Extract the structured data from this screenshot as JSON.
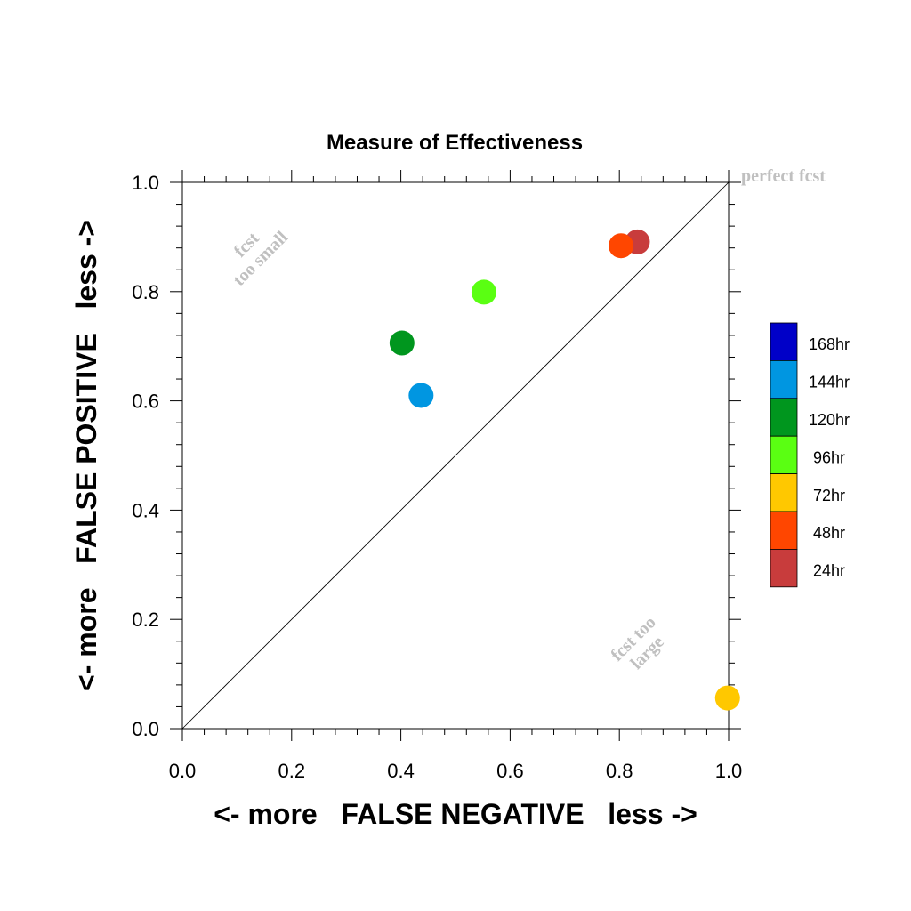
{
  "chart_data": {
    "type": "scatter",
    "title": "Measure of Effectiveness",
    "xlabel": "<- more   FALSE NEGATIVE   less ->",
    "ylabel": "<- more   FALSE POSITIVE   less ->",
    "xlim": [
      0,
      1
    ],
    "ylim": [
      0,
      1
    ],
    "x_ticks": [
      "0.0",
      "0.2",
      "0.4",
      "0.6",
      "0.8",
      "1.0"
    ],
    "y_ticks": [
      "0.0",
      "0.2",
      "0.4",
      "0.6",
      "0.8",
      "1.0"
    ],
    "grid": false,
    "reference_line": "diagonal",
    "annotations": {
      "perfect": "perfect fcst",
      "small_line1": "fcst",
      "small_line2": "too small",
      "large_line1": "fcst too",
      "large_line2": "large"
    },
    "legend_position": "right",
    "series": [
      {
        "name": "168hr",
        "color": "#0000c8",
        "points": []
      },
      {
        "name": "144hr",
        "color": "#0096e1",
        "points": [
          {
            "x": 0.437,
            "y": 0.61
          }
        ]
      },
      {
        "name": "120hr",
        "color": "#00961e",
        "points": [
          {
            "x": 0.402,
            "y": 0.706
          }
        ]
      },
      {
        "name": "96hr",
        "color": "#5aff12",
        "points": [
          {
            "x": 0.552,
            "y": 0.799
          }
        ]
      },
      {
        "name": "72hr",
        "color": "#ffc800",
        "points": [
          {
            "x": 0.998,
            "y": 0.056
          }
        ]
      },
      {
        "name": "48hr",
        "color": "#ff4600",
        "points": [
          {
            "x": 0.803,
            "y": 0.884
          }
        ]
      },
      {
        "name": "24hr",
        "color": "#c83c3c",
        "points": [
          {
            "x": 0.833,
            "y": 0.891
          }
        ]
      }
    ]
  }
}
